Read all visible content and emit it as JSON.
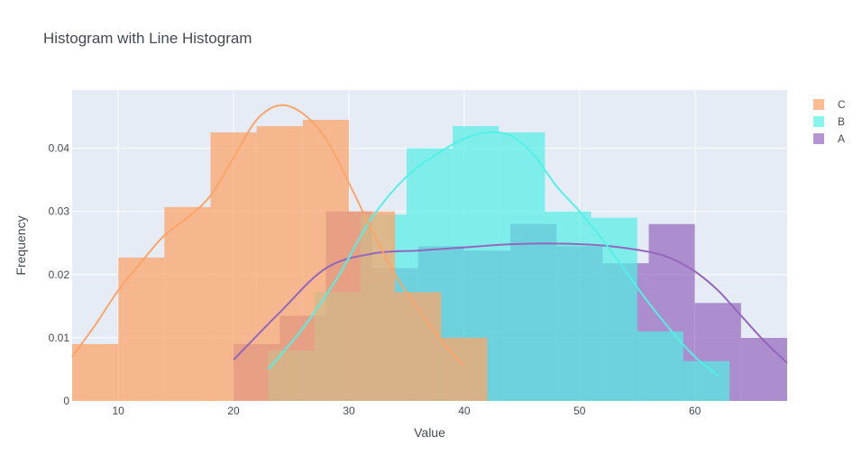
{
  "chart_data": {
    "type": "histogram",
    "title": "Histogram with Line Histogram",
    "xlabel": "Value",
    "ylabel": "Frequency",
    "xlim": [
      6,
      68
    ],
    "ylim": [
      0,
      0.0492
    ],
    "xticks": [
      10,
      20,
      30,
      40,
      50,
      60
    ],
    "yticks": [
      0,
      0.01,
      0.02,
      0.03,
      0.04
    ],
    "ytick_labels": [
      "0",
      "0.01",
      "0.02",
      "0.03",
      "0.04"
    ],
    "grid": true,
    "legend_position": "top-right",
    "series": [
      {
        "name": "A",
        "color": "#9467bd",
        "opacity": 0.7,
        "bins": [
          {
            "x0": 20,
            "x1": 24,
            "value": 0.009
          },
          {
            "x0": 24,
            "x1": 28,
            "value": 0.0135
          },
          {
            "x0": 28,
            "x1": 32,
            "value": 0.03
          },
          {
            "x0": 32,
            "x1": 36,
            "value": 0.021
          },
          {
            "x0": 36,
            "x1": 40,
            "value": 0.0245
          },
          {
            "x0": 40,
            "x1": 44,
            "value": 0.0238
          },
          {
            "x0": 44,
            "x1": 48,
            "value": 0.028
          },
          {
            "x0": 48,
            "x1": 52,
            "value": 0.0245
          },
          {
            "x0": 52,
            "x1": 56,
            "value": 0.0218
          },
          {
            "x0": 56,
            "x1": 60,
            "value": 0.028
          },
          {
            "x0": 60,
            "x1": 64,
            "value": 0.0155
          },
          {
            "x0": 64,
            "x1": 68,
            "value": 0.01
          }
        ],
        "curve_x": [
          20,
          24,
          28,
          32,
          36,
          40,
          44,
          48,
          52,
          56,
          58,
          60,
          62,
          64,
          66,
          68
        ],
        "curve_y": [
          0.0065,
          0.014,
          0.021,
          0.0233,
          0.0238,
          0.0243,
          0.0248,
          0.0249,
          0.0246,
          0.0236,
          0.0225,
          0.0205,
          0.0175,
          0.0135,
          0.0095,
          0.006
        ]
      },
      {
        "name": "B",
        "color": "#54f0e6",
        "opacity": 0.7,
        "bins": [
          {
            "x0": 23,
            "x1": 27,
            "value": 0.008
          },
          {
            "x0": 27,
            "x1": 31,
            "value": 0.0172
          },
          {
            "x0": 31,
            "x1": 35,
            "value": 0.0295
          },
          {
            "x0": 35,
            "x1": 39,
            "value": 0.04
          },
          {
            "x0": 39,
            "x1": 43,
            "value": 0.0435
          },
          {
            "x0": 43,
            "x1": 47,
            "value": 0.0425
          },
          {
            "x0": 47,
            "x1": 51,
            "value": 0.03
          },
          {
            "x0": 51,
            "x1": 55,
            "value": 0.029
          },
          {
            "x0": 55,
            "x1": 59,
            "value": 0.011
          },
          {
            "x0": 59,
            "x1": 63,
            "value": 0.0063
          }
        ],
        "curve_x": [
          23,
          26,
          29,
          32,
          35,
          38,
          40,
          42,
          44,
          46,
          48,
          50,
          52,
          54,
          56,
          58,
          60,
          62
        ],
        "curve_y": [
          0.005,
          0.0115,
          0.0195,
          0.029,
          0.0355,
          0.0395,
          0.0415,
          0.0425,
          0.042,
          0.039,
          0.034,
          0.03,
          0.0255,
          0.0205,
          0.0155,
          0.011,
          0.007,
          0.004
        ]
      },
      {
        "name": "C",
        "color": "#fba56b",
        "opacity": 0.75,
        "bins": [
          {
            "x0": 6,
            "x1": 10,
            "value": 0.009
          },
          {
            "x0": 10,
            "x1": 14,
            "value": 0.0227
          },
          {
            "x0": 14,
            "x1": 18,
            "value": 0.0307
          },
          {
            "x0": 18,
            "x1": 22,
            "value": 0.0425
          },
          {
            "x0": 22,
            "x1": 26,
            "value": 0.0435
          },
          {
            "x0": 26,
            "x1": 30,
            "value": 0.0445
          },
          {
            "x0": 30,
            "x1": 34,
            "value": 0.03
          },
          {
            "x0": 34,
            "x1": 38,
            "value": 0.0172
          },
          {
            "x0": 38,
            "x1": 42,
            "value": 0.01
          }
        ],
        "curve_x": [
          6,
          8,
          10,
          12,
          14,
          16,
          18,
          20,
          22,
          24,
          26,
          28,
          30,
          32,
          34,
          36,
          38,
          40
        ],
        "curve_y": [
          0.007,
          0.012,
          0.0175,
          0.022,
          0.0262,
          0.029,
          0.0325,
          0.0385,
          0.0445,
          0.0468,
          0.0455,
          0.0415,
          0.0345,
          0.027,
          0.02,
          0.0145,
          0.0095,
          0.0055
        ]
      }
    ],
    "legend_order": [
      "C",
      "B",
      "A"
    ]
  }
}
